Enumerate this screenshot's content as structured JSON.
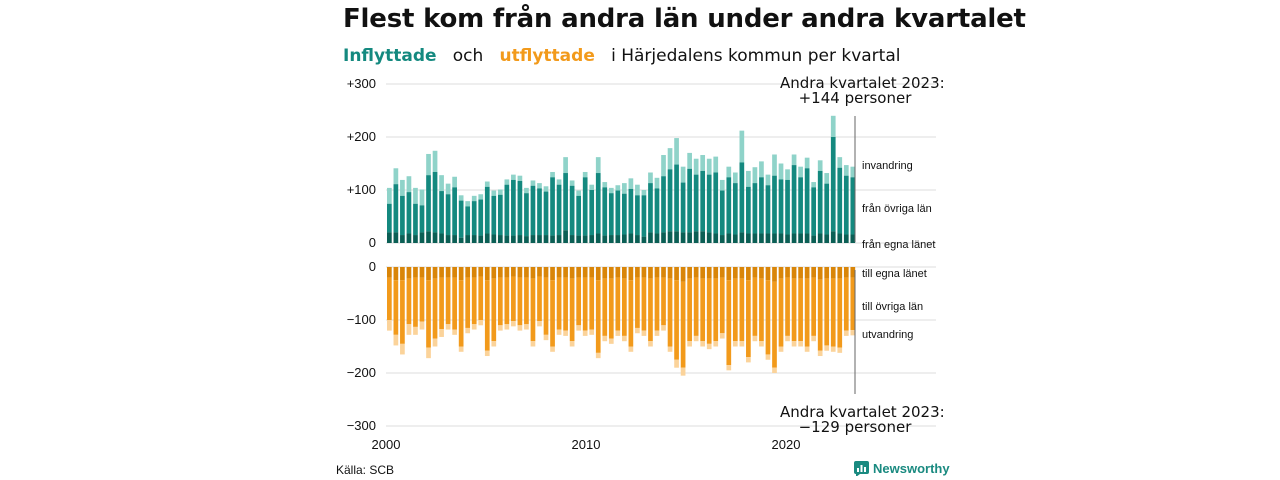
{
  "title": "Flest kom från andra län under andra kvartalet",
  "subtitle": {
    "part1": "Inflyttade",
    "part2": "och",
    "part3": "utflyttade",
    "part4": "i Härjedalens  kommun  per  kvartal"
  },
  "source": "Källa: SCB",
  "brand": "Newsworthy",
  "colors": {
    "in_local": "#0b5f55",
    "in_other": "#14897f",
    "in_net": "#8fd3c9",
    "out_local": "#d98508",
    "out_other": "#f29a1b",
    "out_net": "#fbd39a"
  },
  "annotations": {
    "top": {
      "line1": "Andra kvartalet 2023:",
      "line2": "+144 personer"
    },
    "bottom": {
      "line1": "Andra kvartalet 2023:",
      "line2": "−129 personer"
    }
  },
  "component_labels": {
    "invandring": "invandring",
    "fran_ovriga": "från övriga län",
    "fran_egna": "från egna länet",
    "till_egna": "till egna länet",
    "till_ovriga": "till övriga län",
    "utvandring": "utvandring"
  },
  "chart_data": {
    "type": "bar",
    "x_start": "2000 Q1",
    "x_ticks": [
      "2000",
      "2010",
      "2020"
    ],
    "y_ticks_top": [
      "+300",
      "+200",
      "+100",
      "0"
    ],
    "y_ticks_bottom": [
      "0",
      "−100",
      "−200",
      "−300"
    ],
    "ylim_in": [
      0,
      300
    ],
    "ylim_out": [
      -300,
      0
    ],
    "grid": true,
    "in_total": [
      104,
      141,
      119,
      126,
      104,
      101,
      168,
      174,
      128,
      112,
      125,
      90,
      79,
      89,
      92,
      116,
      99,
      101,
      120,
      129,
      127,
      104,
      118,
      113,
      107,
      134,
      120,
      162,
      118,
      99,
      134,
      110,
      162,
      115,
      104,
      109,
      113,
      122,
      110,
      100,
      133,
      123,
      166,
      179,
      198,
      144,
      170,
      159,
      166,
      159,
      163,
      119,
      144,
      133,
      212,
      136,
      143,
      154,
      129,
      167,
      150,
      139,
      167,
      144,
      161,
      115,
      156,
      132,
      240,
      162,
      147,
      144
    ],
    "in_immigration": [
      30,
      30,
      30,
      30,
      30,
      30,
      40,
      40,
      30,
      20,
      20,
      10,
      10,
      10,
      10,
      10,
      10,
      10,
      10,
      10,
      10,
      10,
      10,
      10,
      10,
      10,
      10,
      30,
      10,
      10,
      10,
      10,
      30,
      10,
      10,
      10,
      20,
      20,
      20,
      10,
      20,
      20,
      40,
      40,
      50,
      30,
      30,
      30,
      30,
      30,
      30,
      20,
      20,
      20,
      60,
      30,
      30,
      30,
      20,
      40,
      30,
      20,
      20,
      20,
      20,
      10,
      20,
      20,
      40,
      20,
      20,
      20
    ],
    "in_local": [
      20,
      20,
      15,
      18,
      15,
      20,
      22,
      20,
      18,
      15,
      15,
      10,
      15,
      15,
      14,
      18,
      16,
      15,
      14,
      14,
      15,
      13,
      15,
      15,
      15,
      14,
      15,
      24,
      15,
      14,
      14,
      15,
      18,
      14,
      15,
      15,
      16,
      18,
      15,
      12,
      20,
      18,
      20,
      22,
      22,
      20,
      20,
      22,
      22,
      20,
      18,
      15,
      18,
      16,
      20,
      18,
      18,
      18,
      18,
      18,
      18,
      16,
      18,
      18,
      18,
      14,
      18,
      16,
      22,
      18,
      16,
      16
    ],
    "out_total": [
      -120,
      -148,
      -165,
      -128,
      -128,
      -118,
      -172,
      -150,
      -132,
      -118,
      -128,
      -160,
      -125,
      -118,
      -110,
      -168,
      -150,
      -120,
      -118,
      -112,
      -120,
      -118,
      -150,
      -112,
      -138,
      -160,
      -128,
      -130,
      -150,
      -120,
      -130,
      -128,
      -172,
      -140,
      -145,
      -130,
      -140,
      -160,
      -125,
      -130,
      -150,
      -130,
      -120,
      -160,
      -190,
      -205,
      -150,
      -140,
      -150,
      -155,
      -150,
      -135,
      -195,
      -150,
      -150,
      -180,
      -140,
      -150,
      -175,
      -200,
      -160,
      -140,
      -150,
      -150,
      -160,
      -140,
      -168,
      -158,
      -160,
      -162,
      -130,
      -129
    ],
    "out_emigration": [
      -20,
      -20,
      -20,
      -20,
      -15,
      -15,
      -20,
      -15,
      -15,
      -10,
      -10,
      -10,
      -10,
      -10,
      -10,
      -10,
      -10,
      -10,
      -10,
      -10,
      -10,
      -10,
      -10,
      -10,
      -10,
      -10,
      -10,
      -10,
      -10,
      -10,
      -10,
      -10,
      -10,
      -10,
      -10,
      -10,
      -10,
      -10,
      -10,
      -10,
      -10,
      -10,
      -10,
      -10,
      -15,
      -15,
      -10,
      -10,
      -10,
      -10,
      -10,
      -10,
      -10,
      -10,
      -10,
      -10,
      -10,
      -10,
      -10,
      -10,
      -10,
      -10,
      -10,
      -10,
      -10,
      -10,
      -10,
      -10,
      -10,
      -10,
      -10,
      -10
    ],
    "out_local": [
      -20,
      -25,
      -25,
      -22,
      -20,
      -20,
      -25,
      -22,
      -20,
      -20,
      -20,
      -25,
      -20,
      -20,
      -18,
      -25,
      -22,
      -20,
      -20,
      -18,
      -20,
      -20,
      -22,
      -18,
      -20,
      -25,
      -20,
      -20,
      -22,
      -20,
      -20,
      -20,
      -25,
      -22,
      -22,
      -20,
      -22,
      -25,
      -20,
      -20,
      -22,
      -20,
      -20,
      -22,
      -25,
      -28,
      -22,
      -20,
      -22,
      -22,
      -22,
      -20,
      -25,
      -22,
      -22,
      -25,
      -20,
      -22,
      -25,
      -28,
      -22,
      -20,
      -22,
      -22,
      -22,
      -20,
      -24,
      -22,
      -22,
      -22,
      -20,
      -20
    ]
  }
}
